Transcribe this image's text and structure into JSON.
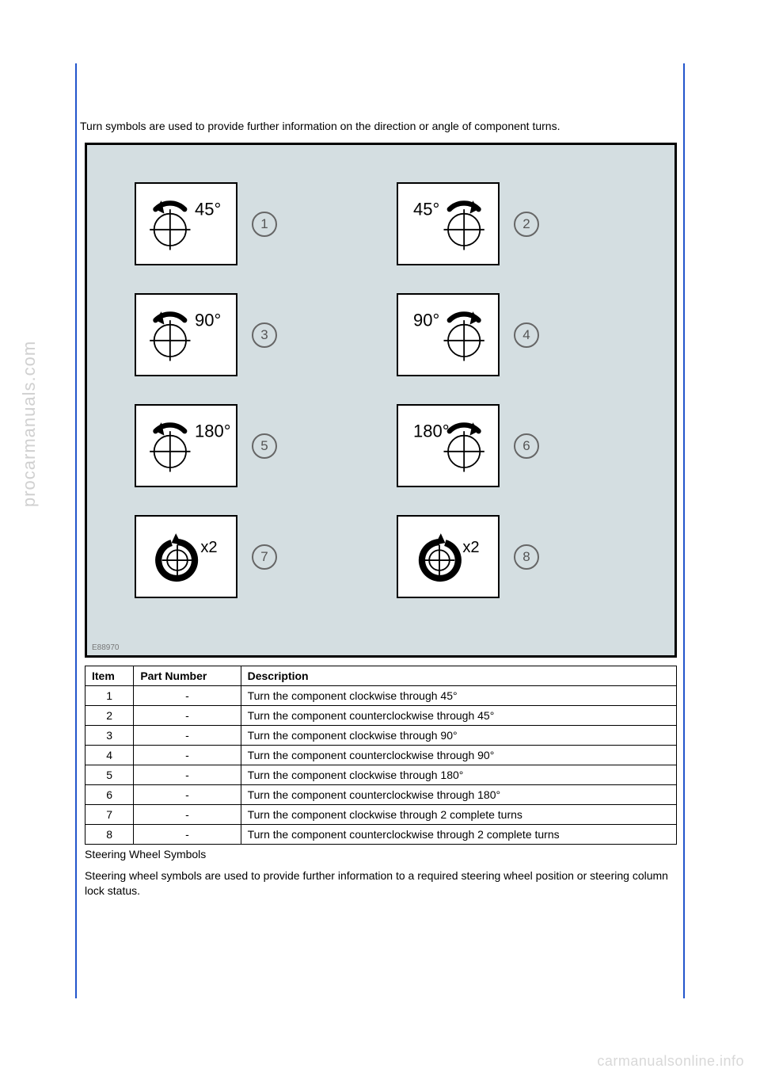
{
  "watermarks": {
    "side": "procarmanuals.com",
    "bottom": "carmanualsonline.info"
  },
  "intro": "Turn symbols are used to provide further information on the direction or angle of component turns.",
  "diagram": {
    "reference": "E88970",
    "items": [
      {
        "num": "1",
        "label": "45°",
        "direction": "cw",
        "kind": "angle"
      },
      {
        "num": "2",
        "label": "45°",
        "direction": "ccw",
        "kind": "angle"
      },
      {
        "num": "3",
        "label": "90°",
        "direction": "cw",
        "kind": "angle"
      },
      {
        "num": "4",
        "label": "90°",
        "direction": "ccw",
        "kind": "angle"
      },
      {
        "num": "5",
        "label": "180°",
        "direction": "cw",
        "kind": "angle"
      },
      {
        "num": "6",
        "label": "180°",
        "direction": "ccw",
        "kind": "angle"
      },
      {
        "num": "7",
        "label": "x2",
        "direction": "cw",
        "kind": "turns"
      },
      {
        "num": "8",
        "label": "x2",
        "direction": "ccw",
        "kind": "turns"
      }
    ]
  },
  "table": {
    "headers": [
      "Item",
      "Part Number",
      "Description"
    ],
    "rows": [
      [
        "1",
        "-",
        "Turn the component clockwise through 45°"
      ],
      [
        "2",
        "-",
        "Turn the component counterclockwise through 45°"
      ],
      [
        "3",
        "-",
        "Turn the component clockwise through 90°"
      ],
      [
        "4",
        "-",
        "Turn the component counterclockwise through 90°"
      ],
      [
        "5",
        "-",
        "Turn the component clockwise through 180°"
      ],
      [
        "6",
        "-",
        "Turn the component counterclockwise through 180°"
      ],
      [
        "7",
        "-",
        "Turn the component clockwise through 2 complete turns"
      ],
      [
        "8",
        "-",
        "Turn the component counterclockwise through 2 complete turns"
      ]
    ]
  },
  "footer_section": {
    "title": "Steering Wheel Symbols",
    "text": "Steering wheel symbols are used to provide further information to a required steering wheel position or steering column lock status."
  },
  "colors": {
    "frame_border": "#2255cc",
    "diagram_bg": "#d4dee1",
    "text": "#000000"
  }
}
